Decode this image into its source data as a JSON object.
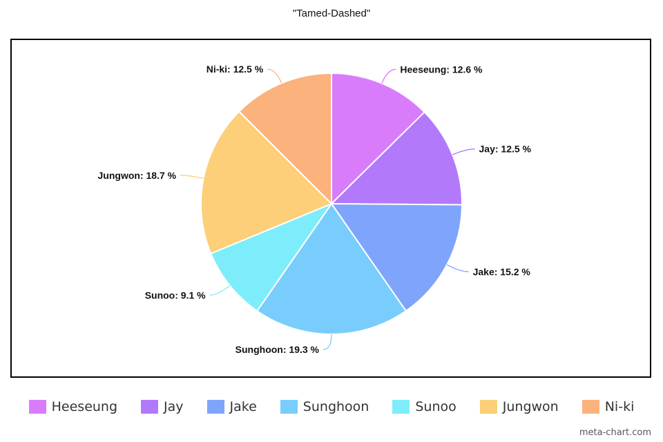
{
  "chart_data": {
    "type": "pie",
    "title": "\"Tamed-Dashed\"",
    "slices": [
      {
        "name": "Heeseung",
        "value": 12.6,
        "label": "Heeseung: 12.6 %",
        "color": "#d97cfc"
      },
      {
        "name": "Jay",
        "value": 12.5,
        "label": "Jay: 12.5 %",
        "color": "#b279fb"
      },
      {
        "name": "Jake",
        "value": 15.2,
        "label": "Jake: 15.2 %",
        "color": "#7ea5fb"
      },
      {
        "name": "Sunghoon",
        "value": 19.3,
        "label": "Sunghoon: 19.3 %",
        "color": "#78cdfc"
      },
      {
        "name": "Sunoo",
        "value": 9.1,
        "label": "Sunoo: 9.1 %",
        "color": "#7eedfb"
      },
      {
        "name": "Jungwon",
        "value": 18.7,
        "label": "Jungwon: 18.7 %",
        "color": "#fccf78"
      },
      {
        "name": "Ni-ki",
        "value": 12.5,
        "label": "Ni-ki: 12.5 %",
        "color": "#fbb27d"
      }
    ],
    "legend_position": "bottom"
  },
  "watermark": "meta-chart.com"
}
